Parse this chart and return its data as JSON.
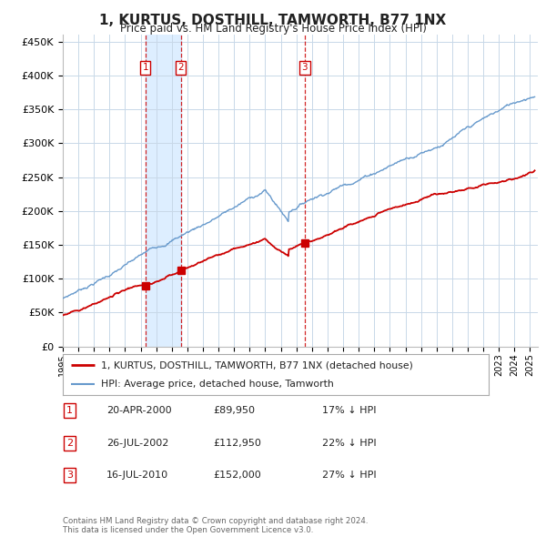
{
  "title": "1, KURTUS, DOSTHILL, TAMWORTH, B77 1NX",
  "subtitle": "Price paid vs. HM Land Registry's House Price Index (HPI)",
  "xlim": [
    1995.0,
    2025.5
  ],
  "ylim": [
    0,
    460000
  ],
  "yticks": [
    0,
    50000,
    100000,
    150000,
    200000,
    250000,
    300000,
    350000,
    400000,
    450000
  ],
  "ytick_labels": [
    "£0",
    "£50K",
    "£100K",
    "£150K",
    "£200K",
    "£250K",
    "£300K",
    "£350K",
    "£400K",
    "£450K"
  ],
  "xtick_years": [
    1995,
    1996,
    1997,
    1998,
    1999,
    2000,
    2001,
    2002,
    2003,
    2004,
    2005,
    2006,
    2007,
    2008,
    2009,
    2010,
    2011,
    2012,
    2013,
    2014,
    2015,
    2016,
    2017,
    2018,
    2019,
    2020,
    2021,
    2022,
    2023,
    2024,
    2025
  ],
  "hpi_color": "#6699cc",
  "price_color": "#cc0000",
  "grid_color": "#c8d8e8",
  "shade_color": "#ddeeff",
  "background_color": "#ffffff",
  "legend_label_price": "1, KURTUS, DOSTHILL, TAMWORTH, B77 1NX (detached house)",
  "legend_label_hpi": "HPI: Average price, detached house, Tamworth",
  "purchases": [
    {
      "label": "1",
      "date_num": 2000.3,
      "price": 89950,
      "date_str": "20-APR-2000",
      "price_str": "£89,950",
      "hpi_str": "17% ↓ HPI"
    },
    {
      "label": "2",
      "date_num": 2002.57,
      "price": 112950,
      "date_str": "26-JUL-2002",
      "price_str": "£112,950",
      "hpi_str": "22% ↓ HPI"
    },
    {
      "label": "3",
      "date_num": 2010.54,
      "price": 152000,
      "date_str": "16-JUL-2010",
      "price_str": "£152,000",
      "hpi_str": "27% ↓ HPI"
    }
  ],
  "footnote": "Contains HM Land Registry data © Crown copyright and database right 2024.\nThis data is licensed under the Open Government Licence v3.0."
}
